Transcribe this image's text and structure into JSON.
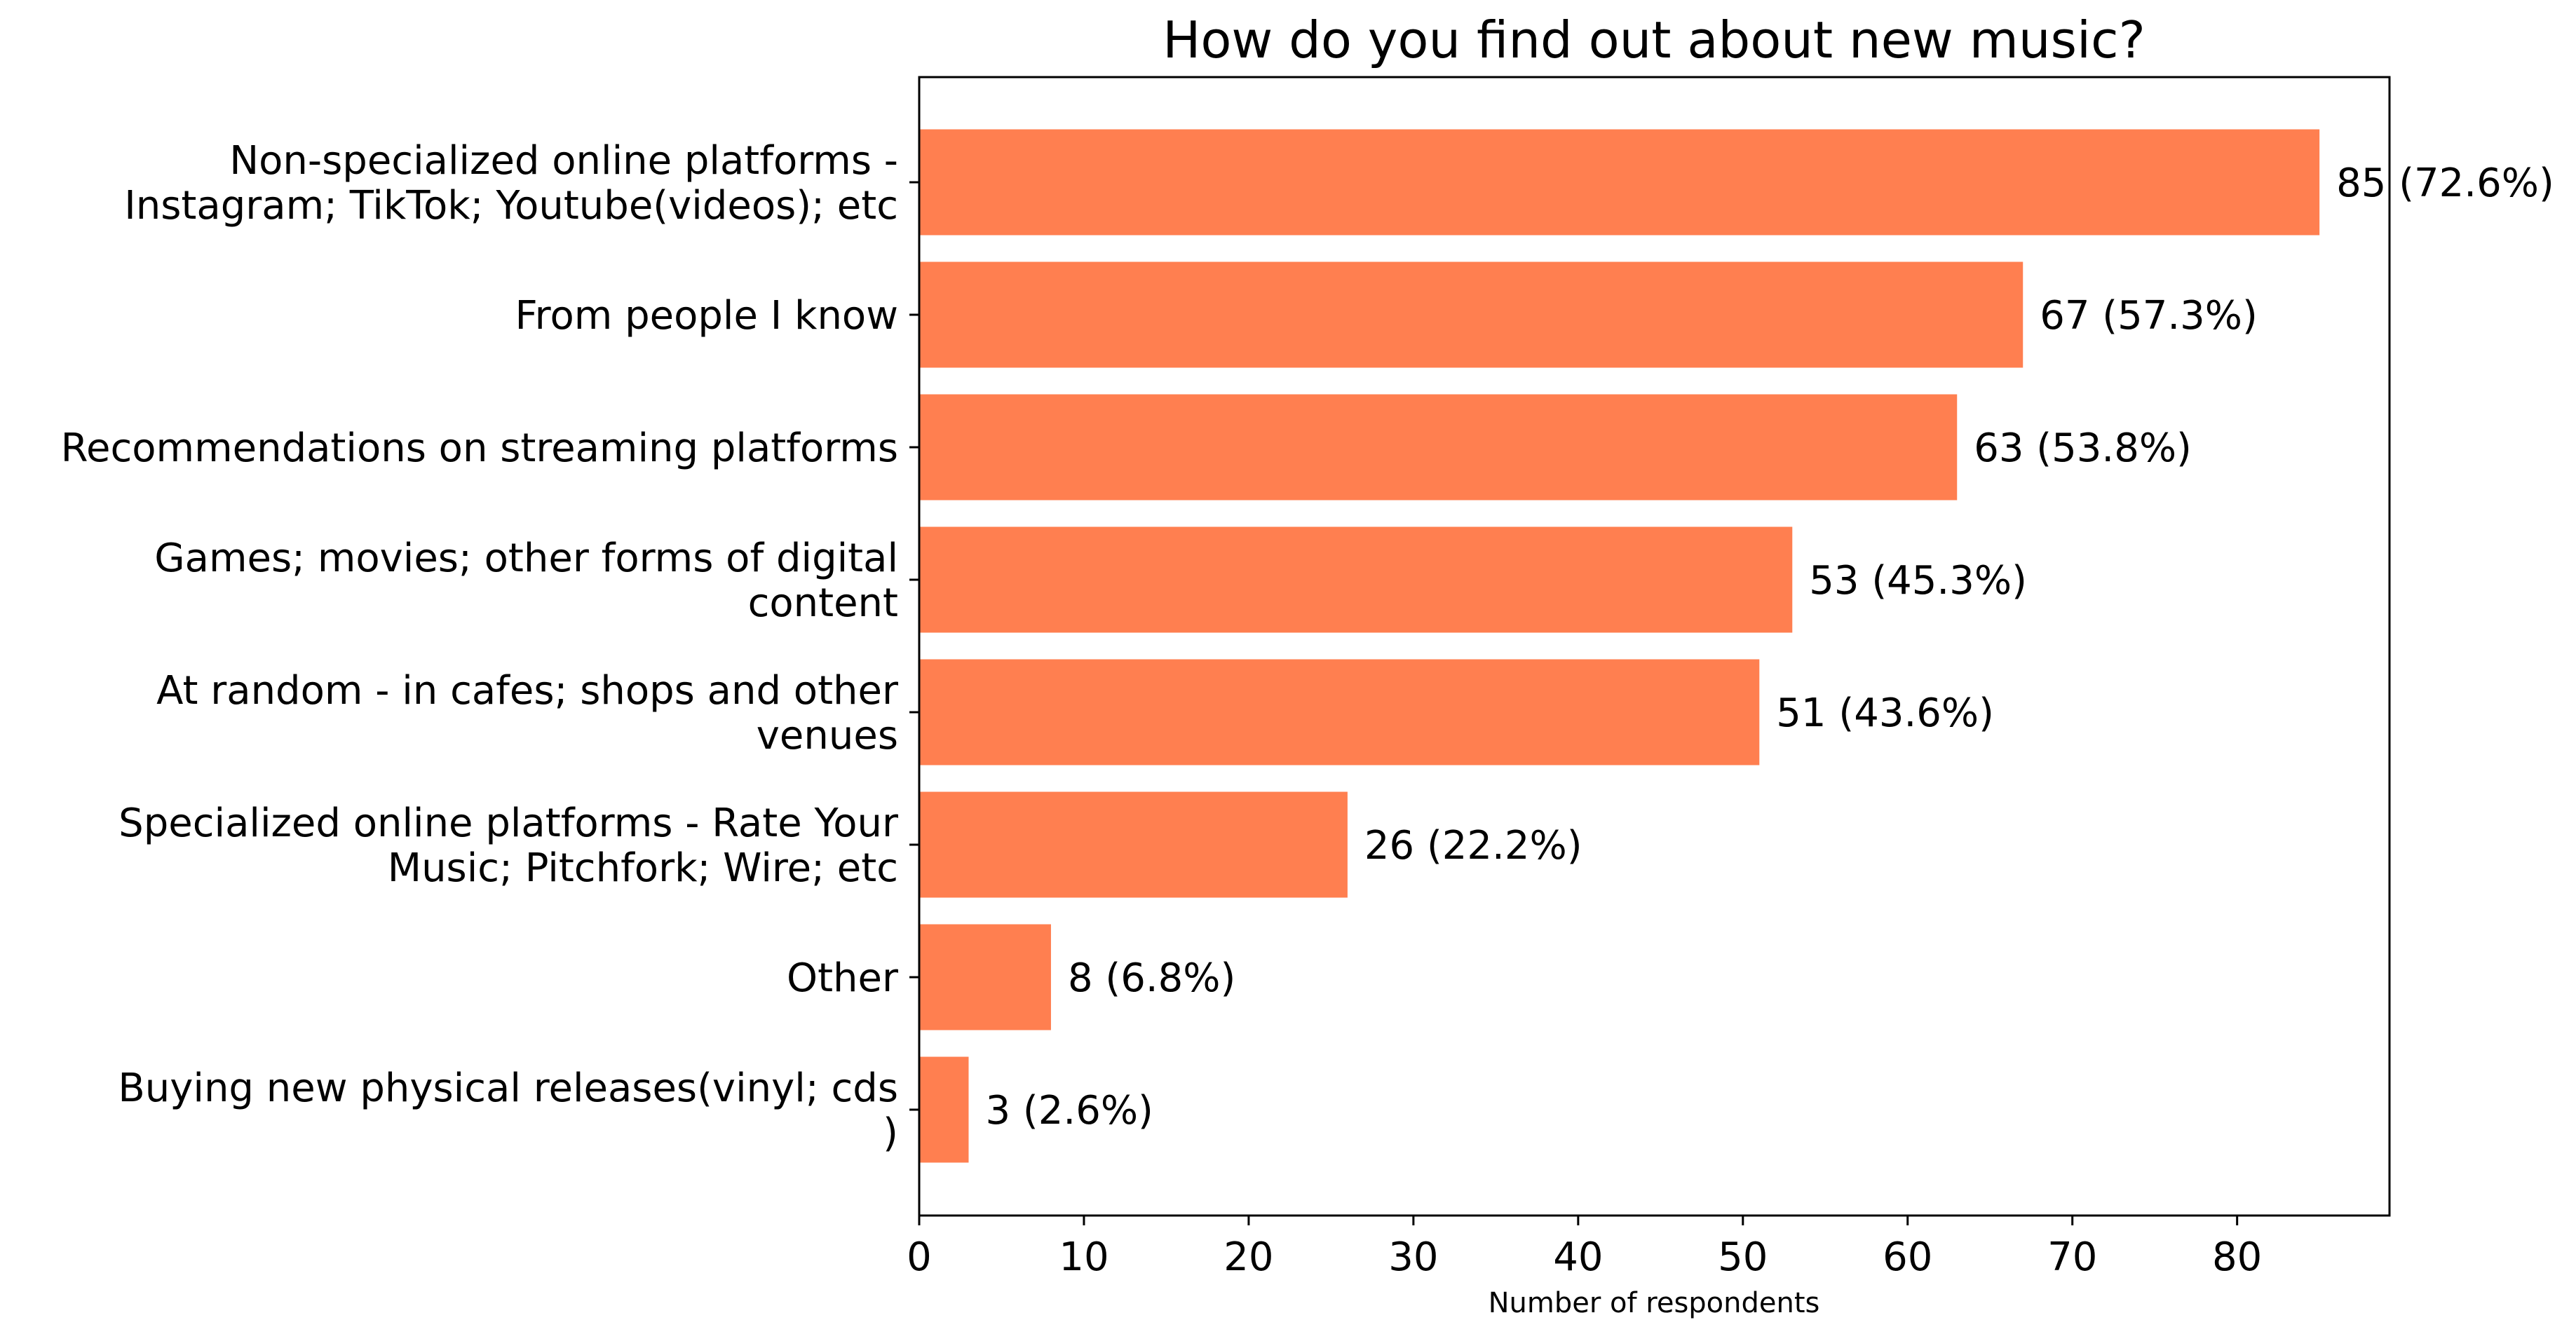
{
  "chart_data": {
    "type": "bar",
    "orientation": "horizontal",
    "title": "How do you find out about new music?",
    "xlabel": "Number of respondents",
    "ylabel": "",
    "xlim": [
      0,
      89.25
    ],
    "xticks": [
      0,
      10,
      20,
      30,
      40,
      50,
      60,
      70,
      80
    ],
    "grid": false,
    "bar_color": "#ff7f50",
    "categories": [
      [
        "Non-specialized online platforms -",
        "Instagram; TikTok; Youtube(videos); etc"
      ],
      [
        "From people I know"
      ],
      [
        "Recommendations on streaming platforms"
      ],
      [
        "Games; movies; other forms of digital",
        "content"
      ],
      [
        "At random - in cafes; shops and other",
        "venues"
      ],
      [
        "Specialized online platforms - Rate Your",
        "Music; Pitchfork; Wire; etc"
      ],
      [
        "Other"
      ],
      [
        "Buying new physical releases(vinyl; cds",
        ")"
      ]
    ],
    "values": [
      85,
      67,
      63,
      53,
      51,
      26,
      8,
      3
    ],
    "data_labels": [
      "85 (72.6%)",
      "67 (57.3%)",
      "63 (53.8%)",
      "53 (45.3%)",
      "51 (43.6%)",
      "26 (22.2%)",
      "8 (6.8%)",
      "3 (2.6%)"
    ]
  }
}
